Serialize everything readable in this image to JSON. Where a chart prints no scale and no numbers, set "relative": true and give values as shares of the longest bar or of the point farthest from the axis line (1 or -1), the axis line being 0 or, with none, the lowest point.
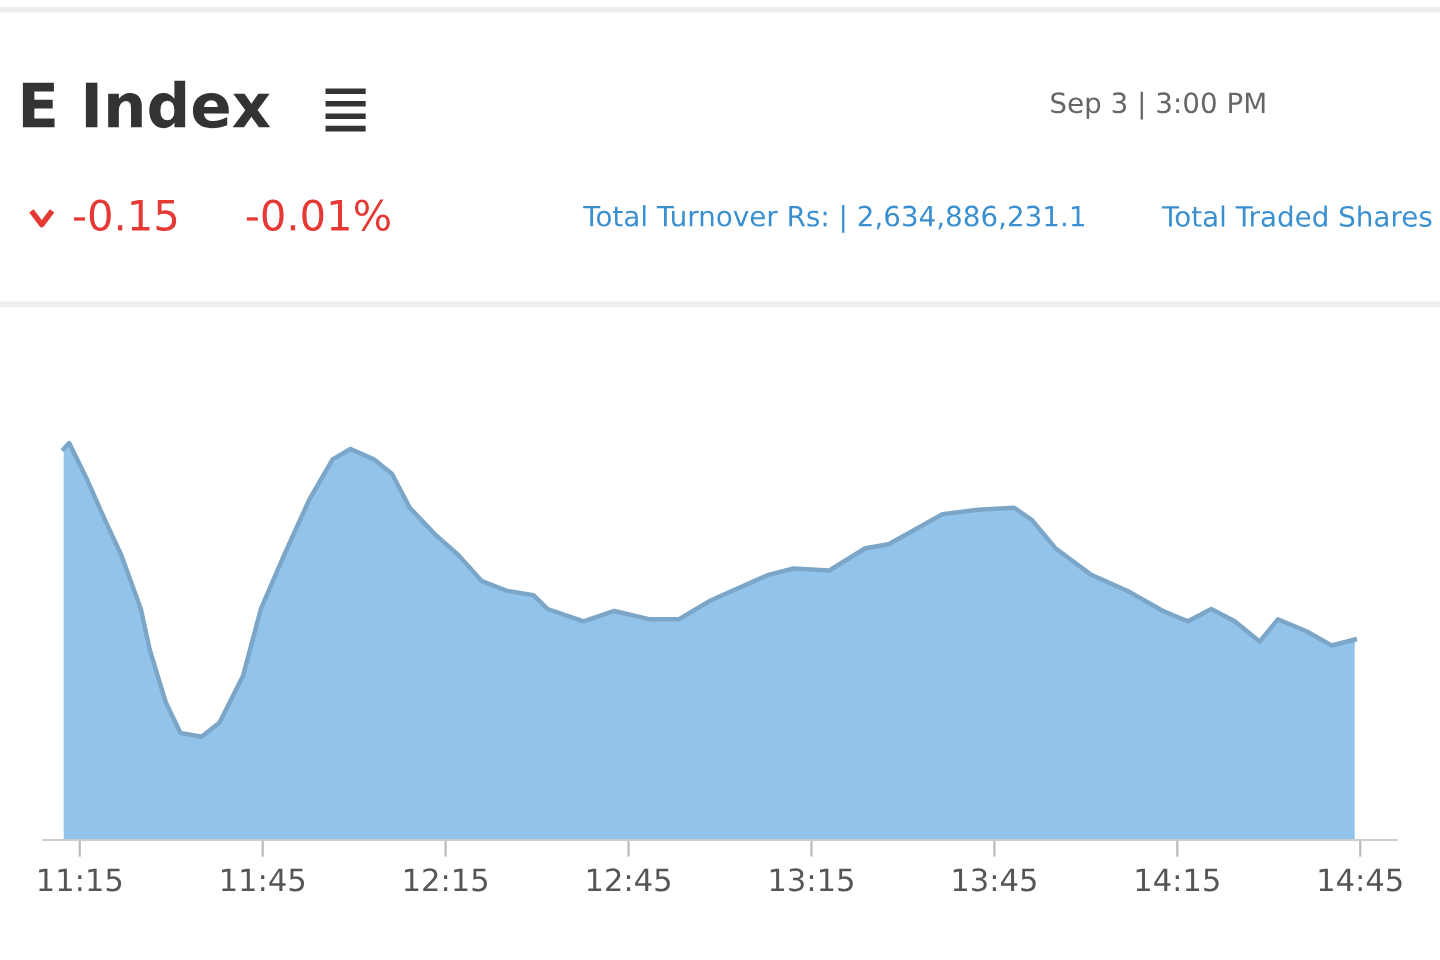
{
  "chart_data": {
    "type": "area",
    "title": "E Index",
    "relative": true,
    "annotations": [
      "Sep 3 | 3:00 PM",
      "-0.15",
      "-0.01%",
      "Total Turnover Rs: | 2,634,886,231.1",
      "Total Traded Shares"
    ],
    "xlim": [
      11.15,
      14.85
    ],
    "xticks": [
      {
        "value": 11.25,
        "label": "11:15"
      },
      {
        "value": 11.75,
        "label": "11:45"
      },
      {
        "value": 12.25,
        "label": "12:15"
      },
      {
        "value": 12.75,
        "label": "12:45"
      },
      {
        "value": 13.25,
        "label": "13:15"
      },
      {
        "value": 13.75,
        "label": "13:45"
      },
      {
        "value": 14.25,
        "label": "14:15"
      },
      {
        "value": 14.75,
        "label": "14:45"
      }
    ],
    "x": [
      11.206,
      11.221,
      11.27,
      11.319,
      11.363,
      11.417,
      11.441,
      11.485,
      11.525,
      11.583,
      11.632,
      11.696,
      11.745,
      11.809,
      11.877,
      11.941,
      11.99,
      12.054,
      12.103,
      12.152,
      12.221,
      12.284,
      12.348,
      12.417,
      12.49,
      12.529,
      12.627,
      12.711,
      12.809,
      12.887,
      12.971,
      13.034,
      13.132,
      13.201,
      13.299,
      13.397,
      13.461,
      13.608,
      13.706,
      13.804,
      13.853,
      13.917,
      14.015,
      14.113,
      14.211,
      14.279,
      14.343,
      14.407,
      14.475,
      14.525,
      14.603,
      14.672,
      14.735
    ],
    "series": [
      {
        "color": "#92c3eb",
        "values": [
          0.985,
          1.0,
          0.908,
          0.806,
          0.719,
          0.582,
          0.48,
          0.347,
          0.27,
          0.26,
          0.296,
          0.413,
          0.582,
          0.719,
          0.857,
          0.959,
          0.985,
          0.959,
          0.923,
          0.837,
          0.77,
          0.719,
          0.653,
          0.628,
          0.617,
          0.582,
          0.551,
          0.577,
          0.556,
          0.556,
          0.602,
          0.628,
          0.668,
          0.684,
          0.679,
          0.735,
          0.745,
          0.821,
          0.832,
          0.837,
          0.806,
          0.735,
          0.668,
          0.628,
          0.577,
          0.551,
          0.582,
          0.551,
          0.5,
          0.556,
          0.526,
          0.49,
          0.505
        ]
      }
    ]
  }
}
